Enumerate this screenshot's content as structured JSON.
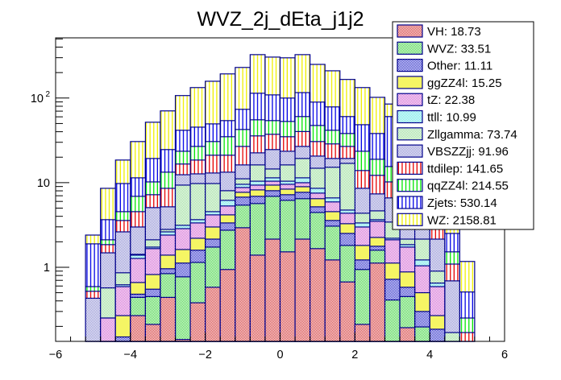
{
  "chart_data": {
    "type": "bar",
    "subtype": "stacked-histogram",
    "title": "WVZ_2j_dEta_j1j2",
    "xlabel": "",
    "ylabel": "",
    "yscale": "log",
    "xlim": [
      -6,
      6
    ],
    "ylim": [
      0.133,
      515
    ],
    "x_ticks": [
      "−6",
      "−4",
      "−2",
      "0",
      "2",
      "4",
      "6"
    ],
    "x_tick_values": [
      -6,
      -4,
      -2,
      0,
      2,
      4,
      6
    ],
    "y_ticks": [
      {
        "value": 1,
        "label": "1"
      },
      {
        "value": 10,
        "label": "10"
      },
      {
        "value": 100,
        "label": "10",
        "exponent": "2"
      }
    ],
    "grid": false,
    "legend_position": "top-right",
    "bin_edges_start": -5.2,
    "bin_width": 0.4,
    "n_bins": 26,
    "stacked_values_are_cumulative": true,
    "series": [
      {
        "name": "VH",
        "legend": "VH: 18.73",
        "fill": "#d23232",
        "pattern": "checker",
        "line": "#00008b",
        "cumulative": [
          0,
          0,
          0,
          0.268,
          0.211,
          0.44,
          0.14,
          0.38,
          0.58,
          0.94,
          2.93,
          1.39,
          2.15,
          1.52,
          2.15,
          1.66,
          1.22,
          0.67,
          0.211,
          1.12,
          0,
          0.193,
          0,
          0,
          0,
          0
        ]
      },
      {
        "name": "WVZ",
        "legend": "WVZ: 33.51",
        "fill": "#3cd23c",
        "pattern": "checker",
        "line": "#00008b",
        "cumulative": [
          0,
          0,
          0,
          0.44,
          0.45,
          0.84,
          0.77,
          1.14,
          1.73,
          2.74,
          5.42,
          5.66,
          6.89,
          6.18,
          6.46,
          4.44,
          3.06,
          1.81,
          0.94,
          1.59,
          0.41,
          0.45,
          0.197,
          0,
          0,
          0
        ]
      },
      {
        "name": "Other",
        "legend": "Other: 11.11",
        "fill": "#2828c8",
        "pattern": "checker",
        "line": "#00008b",
        "cumulative": [
          0,
          0,
          0.15,
          0.48,
          0.55,
          0.96,
          1.12,
          1.59,
          2.15,
          3.34,
          6.74,
          6.89,
          8.03,
          7.2,
          7.69,
          5.18,
          3.57,
          2.51,
          1.22,
          1.77,
          0.72,
          0.58,
          0.3,
          0.185,
          0,
          0
        ]
      },
      {
        "name": "ggZZ4l",
        "legend": "ggZZ4l: 15.25",
        "fill": "#f5f564",
        "pattern": "solid",
        "line": "#00008b",
        "cumulative": [
          0,
          0,
          0.268,
          0.66,
          0.82,
          1.39,
          1.62,
          2.2,
          2.99,
          4.16,
          7.69,
          8.21,
          9.35,
          8.38,
          8.95,
          6.46,
          4.54,
          3.27,
          1.81,
          2.25,
          1.12,
          0.88,
          0.5,
          0.268,
          0,
          0
        ]
      },
      {
        "name": "tZ",
        "legend": "tZ: 22.38",
        "fill": "#d264d2",
        "pattern": "checker",
        "line": "#00008b",
        "cumulative": [
          0,
          0.251,
          0.59,
          1.27,
          1.66,
          2.4,
          2.86,
          3.34,
          4.16,
          5.3,
          8.76,
          9.35,
          10.4,
          9.56,
          9.98,
          7.52,
          5.92,
          4.35,
          2.99,
          3.49,
          2.11,
          1.73,
          1.04,
          0.59,
          0,
          0
        ]
      },
      {
        "name": "ttll",
        "legend": "ttll: 10.99",
        "fill": "#64e6e6",
        "pattern": "checker",
        "line": "#00008b",
        "cumulative": [
          0,
          0.251,
          0.62,
          1.39,
          1.73,
          2.62,
          3.13,
          3.65,
          4.54,
          6.18,
          9.56,
          10.4,
          11.4,
          10.4,
          11.4,
          8.57,
          6.6,
          4.74,
          3.34,
          3.65,
          2.2,
          1.85,
          1.22,
          0.65,
          0,
          0
        ]
      },
      {
        "name": "Zllgamma",
        "legend": "Zllgamma: 73.74",
        "fill": "#96dc96",
        "pattern": "checker",
        "line": "#00008b",
        "cumulative": [
          0,
          0.57,
          0.86,
          1.42,
          2.11,
          2.8,
          9.35,
          9.76,
          9.76,
          8.03,
          11.1,
          16.2,
          14.5,
          16.2,
          19.3,
          14.8,
          15.2,
          16.9,
          4.35,
          4.64,
          3.42,
          2.15,
          2.15,
          0.9,
          0.169,
          0
        ]
      },
      {
        "name": "VBSZZjj",
        "legend": "VBSZZjj: 91.96",
        "fill": "#8c8cd2",
        "pattern": "checker",
        "line": "#00008b",
        "cumulative": [
          0.43,
          1.48,
          2.62,
          2.99,
          5.07,
          5.18,
          12.4,
          12.7,
          13.0,
          13.3,
          16.2,
          22.5,
          24.6,
          23.5,
          26.8,
          20.6,
          19.3,
          19.3,
          8.57,
          7.36,
          6.6,
          4.35,
          3.49,
          2.15,
          0.69,
          0
        ]
      },
      {
        "name": "ttdilep",
        "legend": "ttdilep: 141.65",
        "fill": "#e60000",
        "pattern": "vstripes",
        "line": "#00008b",
        "cumulative": [
          0.52,
          1.85,
          3.57,
          4.54,
          7.2,
          8.57,
          16.6,
          18.5,
          21.1,
          21.1,
          26.8,
          35.7,
          37.3,
          34.9,
          40.2,
          30.6,
          28.7,
          26.8,
          13.9,
          12.2,
          10.2,
          6.74,
          5.07,
          2.99,
          1.09,
          0.169
        ]
      },
      {
        "name": "qqZZ4l",
        "legend": "qqZZ4l: 214.55",
        "fill": "#00e600",
        "pattern": "vstripes",
        "line": "#00008b",
        "cumulative": [
          0.59,
          2.11,
          4.54,
          6.89,
          10.2,
          13.3,
          23.5,
          26.8,
          30.6,
          34.9,
          42.5,
          55.3,
          54.1,
          52.9,
          60.4,
          47.4,
          41.6,
          38.1,
          23.5,
          18.9,
          15.5,
          10.4,
          7.52,
          5.18,
          1.52,
          0.251
        ]
      },
      {
        "name": "Zjets",
        "legend": "Zjets: 530.14",
        "fill": "#0000e6",
        "pattern": "vstripes",
        "line": "#00008b",
        "cumulative": [
          1.89,
          3.65,
          9.76,
          11.4,
          19.3,
          24.6,
          41.6,
          45.3,
          49.5,
          54.1,
          73.6,
          114,
          109,
          100,
          116,
          89.6,
          78.6,
          60.4,
          48.4,
          38.1,
          60.4,
          31.3,
          24.6,
          12.4,
          2.51,
          0.51
        ]
      },
      {
        "name": "WZ",
        "legend": "WZ: 2158.81",
        "fill": "#f0f000",
        "pattern": "vstripes",
        "line": "#00008b",
        "cumulative": [
          2.4,
          8.57,
          18.5,
          30.6,
          51.8,
          70.5,
          107,
          133,
          158,
          193,
          230,
          326,
          305,
          299,
          326,
          250,
          210,
          166,
          133,
          102,
          85,
          67,
          50,
          31,
          4.64,
          1.17
        ]
      }
    ]
  }
}
